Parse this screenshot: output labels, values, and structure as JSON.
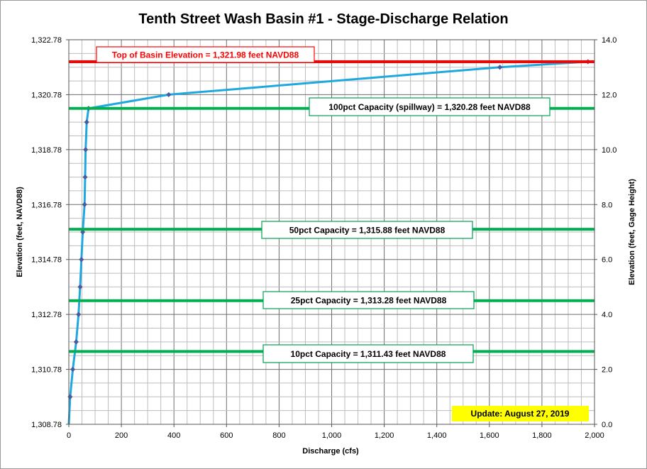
{
  "chart_data": {
    "type": "line",
    "title": "Tenth Street Wash Basin #1 - Stage-Discharge Relation",
    "xlabel": "Discharge  (cfs)",
    "ylabel_left": "Elevation  (feet, NAVD88)",
    "ylabel_right": "Elevation  (feet, Gage Height)",
    "xlim": [
      0,
      2000
    ],
    "xticks": [
      0,
      200,
      400,
      600,
      800,
      1000,
      1200,
      1400,
      1600,
      1800,
      2000
    ],
    "xtick_labels": [
      "0",
      "200",
      "400",
      "600",
      "800",
      "1,000",
      "1,200",
      "1,400",
      "1,600",
      "1,800",
      "2,000"
    ],
    "ylim_left": [
      1308.78,
      1322.78
    ],
    "yticks_left": [
      1308.78,
      1310.78,
      1312.78,
      1314.78,
      1316.78,
      1318.78,
      1320.78,
      1322.78
    ],
    "ytick_labels_left": [
      "1,308.78",
      "1,310.78",
      "1,312.78",
      "1,314.78",
      "1,316.78",
      "1,318.78",
      "1,320.78",
      "1,322.78"
    ],
    "ylim_right": [
      0,
      14
    ],
    "yticks_right": [
      0,
      2,
      4,
      6,
      8,
      10,
      12,
      14
    ],
    "ytick_labels_right": [
      "0.0",
      "2.0",
      "4.0",
      "6.0",
      "8.0",
      "10.0",
      "12.0",
      "14.0"
    ],
    "grid": true,
    "series": [
      {
        "color": "#1fa8e0",
        "marker_color": "#4a5a9a",
        "x": [
          0,
          5,
          15,
          28,
          37,
          43,
          48,
          53,
          60,
          62,
          64,
          68,
          75,
          380,
          1640,
          1975
        ],
        "gage_height": [
          0.0,
          1.0,
          2.0,
          3.0,
          4.0,
          5.0,
          6.0,
          7.0,
          8.0,
          9.0,
          10.0,
          11.0,
          11.5,
          12.0,
          13.0,
          13.2
        ]
      }
    ],
    "reference_lines": [
      {
        "label": "Top of Basin Elevation = 1,321.98  feet NAVD88",
        "elevation": 1321.98,
        "color": "#ff0000",
        "text_color": "#ff0000",
        "box_border": "#ff0000"
      },
      {
        "label": "100pct Capacity (spillway) = 1,320.28  feet NAVD88",
        "elevation": 1320.28,
        "color": "#00b050",
        "text_color": "#000000",
        "box_border": "#00a050"
      },
      {
        "label": "50pct Capacity = 1,315.88  feet NAVD88",
        "elevation": 1315.88,
        "color": "#00b050",
        "text_color": "#000000",
        "box_border": "#00a050"
      },
      {
        "label": "25pct Capacity = 1,313.28  feet NAVD88",
        "elevation": 1313.28,
        "color": "#00b050",
        "text_color": "#000000",
        "box_border": "#00a050"
      },
      {
        "label": "10pct Capacity = 1,311.43  feet NAVD88",
        "elevation": 1311.43,
        "color": "#00b050",
        "text_color": "#000000",
        "box_border": "#00a050"
      }
    ],
    "annotation": {
      "text": "Update: August 27, 2019",
      "background": "#ffff00"
    }
  }
}
